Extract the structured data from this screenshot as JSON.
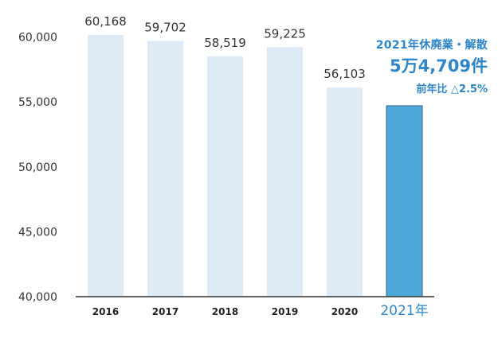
{
  "chart_data": {
    "type": "bar",
    "categories": [
      "2016",
      "2017",
      "2018",
      "2019",
      "2020",
      "2021年"
    ],
    "values": [
      60168,
      59702,
      58519,
      59225,
      56103,
      54709
    ],
    "data_labels": [
      "60,168",
      "59,702",
      "58,519",
      "59,225",
      "56,103",
      ""
    ],
    "ylim": [
      40000,
      62000
    ],
    "yticks": [
      40000,
      45000,
      50000,
      55000,
      60000
    ],
    "ytick_labels": [
      "40,000",
      "45,000",
      "50,000",
      "55,000",
      "60,000"
    ],
    "highlight_index": 5,
    "colors": {
      "bar": "#ddebf7",
      "bar_highlight": "#4fa8dc",
      "highlight_outline": "#2d5f8a",
      "annotation": "#2e86c9",
      "axis": "#333333"
    },
    "grid": false,
    "annotation": {
      "line1": "2021年休廃業・解散",
      "line2": "5万4,709件",
      "line3": "前年比 △2.5%"
    }
  }
}
